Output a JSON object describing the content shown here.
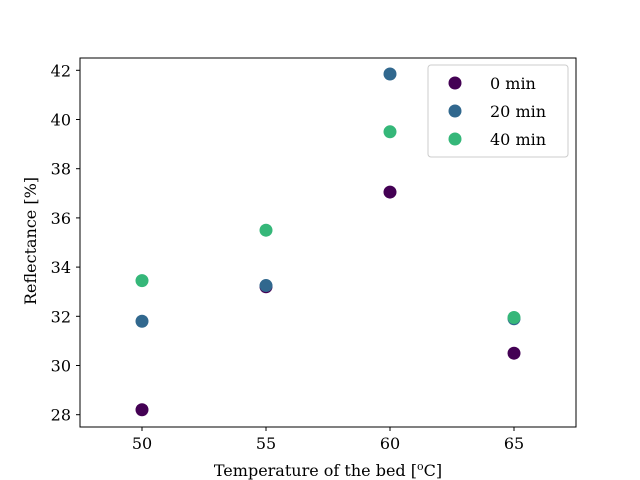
{
  "chart_data": {
    "type": "scatter",
    "xlabel_main": "Temperature of the bed [",
    "xlabel_sup": "o",
    "xlabel_end": "C]",
    "ylabel": "Reflectance [%]",
    "xlim": [
      47.5,
      67.5
    ],
    "ylim": [
      27.5,
      42.5
    ],
    "xticks": [
      50,
      55,
      60,
      65
    ],
    "yticks": [
      28,
      30,
      32,
      34,
      36,
      38,
      40,
      42
    ],
    "grid": false,
    "legend_position": "top-right",
    "series": [
      {
        "name": "0 min",
        "color": "#440154",
        "x": [
          50,
          55,
          60,
          65
        ],
        "y": [
          28.2,
          33.2,
          37.05,
          30.5
        ]
      },
      {
        "name": "20 min",
        "color": "#31688e",
        "x": [
          50,
          55,
          60,
          65
        ],
        "y": [
          31.8,
          33.25,
          41.85,
          31.9
        ]
      },
      {
        "name": "40 min",
        "color": "#35b779",
        "x": [
          50,
          55,
          60,
          65
        ],
        "y": [
          33.45,
          35.5,
          39.5,
          31.95
        ]
      }
    ]
  }
}
